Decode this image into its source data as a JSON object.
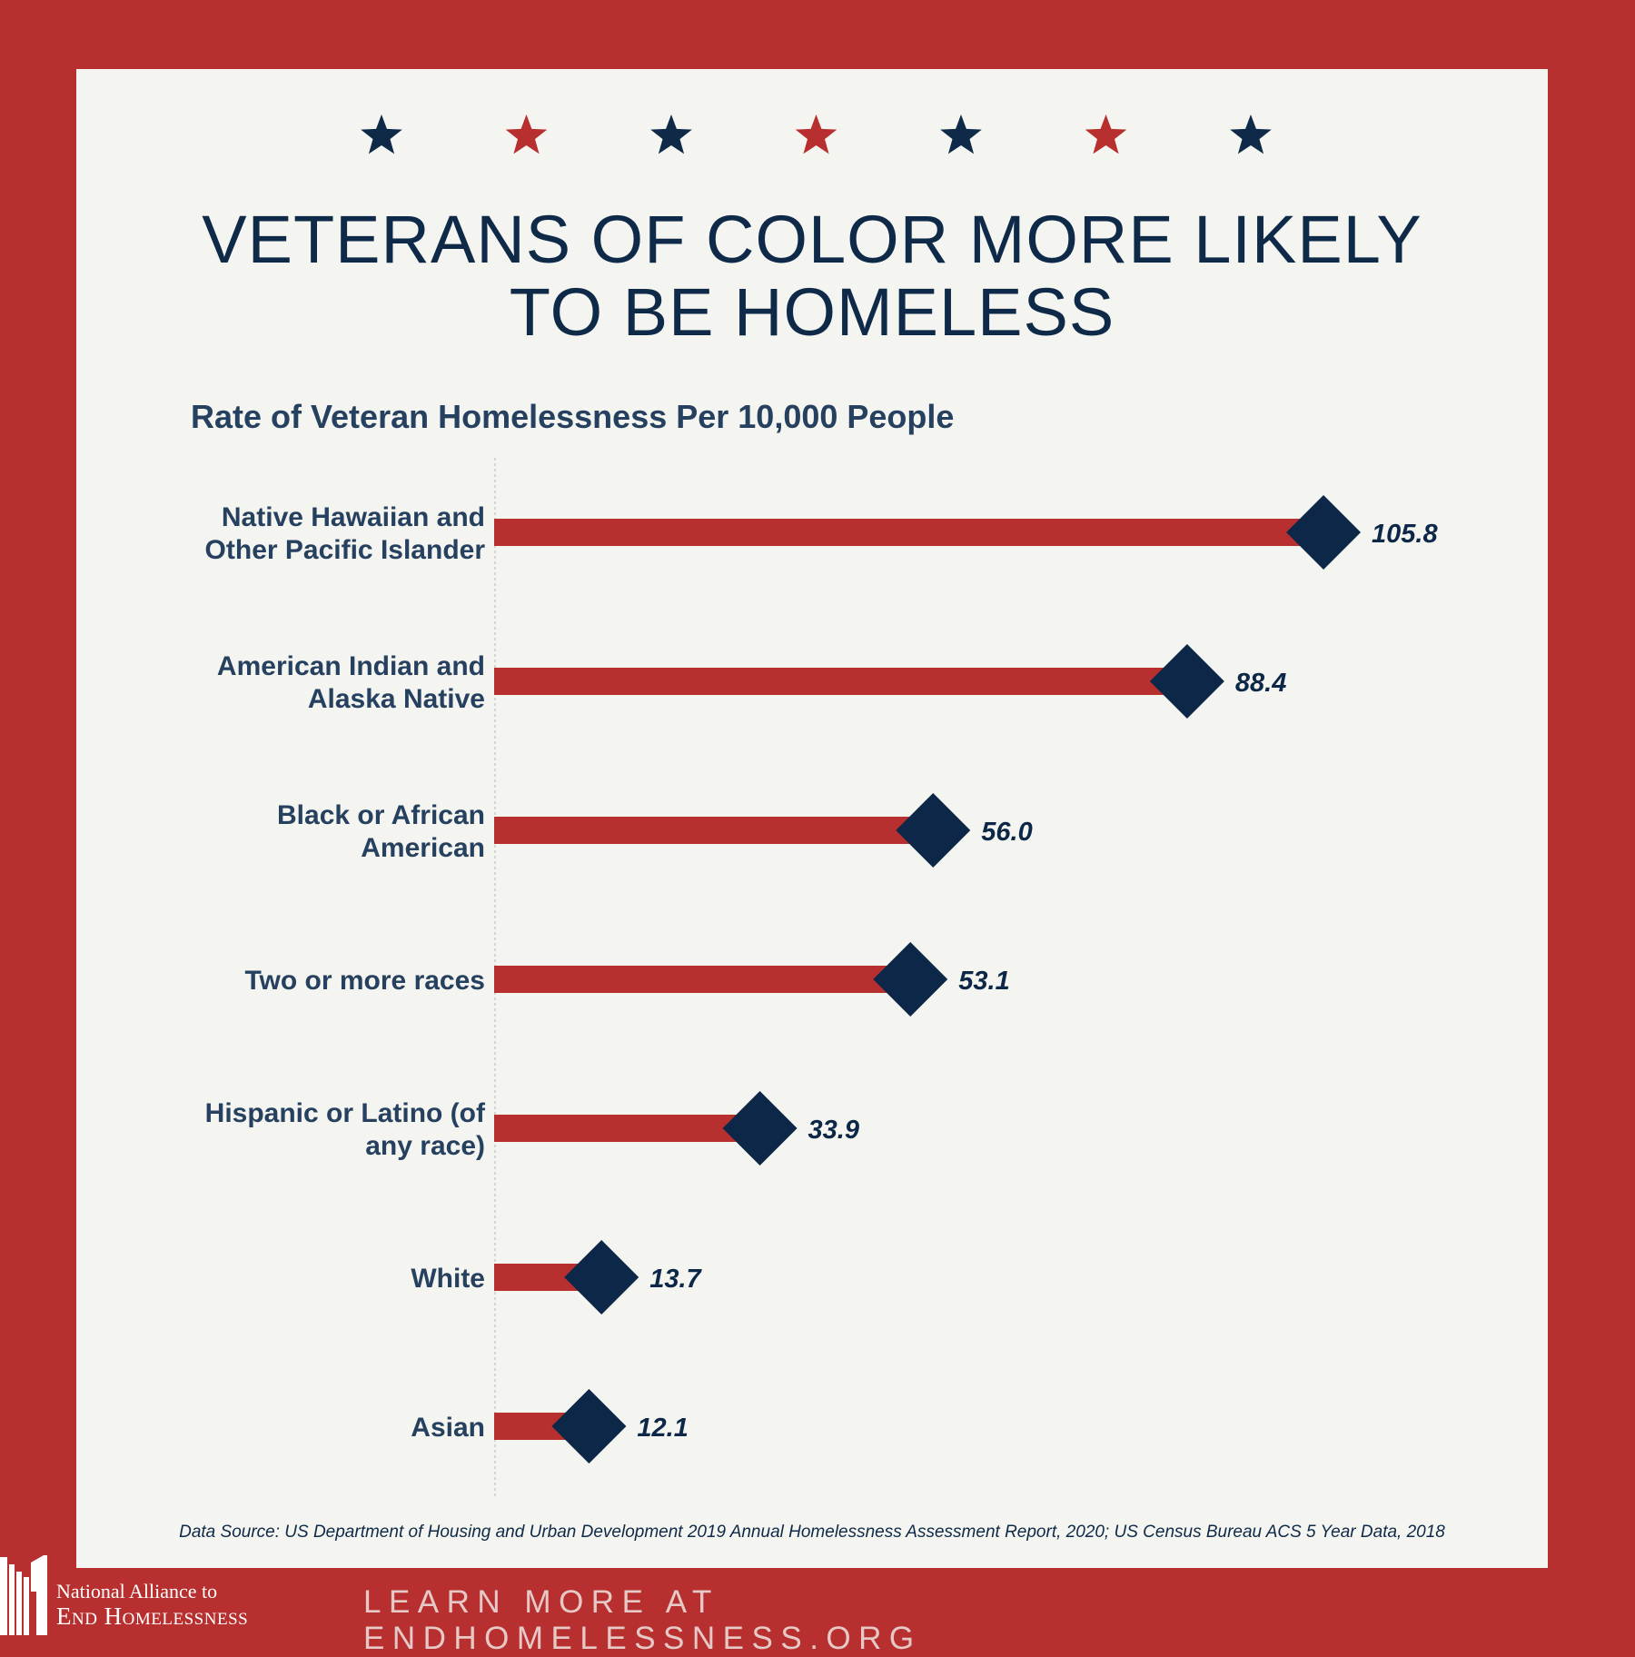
{
  "header": {
    "title_line1": "VETERANS OF COLOR MORE LIKELY",
    "title_line2": "TO BE HOMELESS",
    "star_colors": [
      "#0e2a48",
      "#b72f2e",
      "#0e2a48",
      "#b72f2e",
      "#0e2a48",
      "#b72f2e",
      "#0e2a48"
    ]
  },
  "chart_data": {
    "type": "bar",
    "title": "Rate of Veteran Homelessness Per 10,000 People",
    "categories": [
      [
        "Native Hawaiian and",
        "Other Pacific Islander"
      ],
      [
        "American Indian and",
        "Alaska Native"
      ],
      [
        "Black or African",
        "American"
      ],
      [
        "Two or more races"
      ],
      [
        "Hispanic or Latino (of",
        "any race)"
      ],
      [
        "White"
      ],
      [
        "Asian"
      ]
    ],
    "values": [
      105.8,
      88.4,
      56.0,
      53.1,
      33.9,
      13.7,
      12.1
    ],
    "value_labels": [
      "105.8",
      "88.4",
      "56.0",
      "53.1",
      "33.9",
      "13.7",
      "12.1"
    ],
    "orientation": "horizontal",
    "marker": "diamond",
    "grid": false,
    "colors": {
      "bar": "#b72f2e",
      "marker": "#0c2747",
      "text": "#26405f"
    }
  },
  "source": "Data Source: US Department of Housing and Urban Development 2019 Annual Homelessness Assessment Report, 2020; US Census Bureau ACS 5 Year Data, 2018",
  "footer": {
    "logo_line1": "National Alliance to",
    "logo_line2": "End Homelessness",
    "cta": "LEARN MORE AT ENDHOMELESSNESS.ORG"
  }
}
